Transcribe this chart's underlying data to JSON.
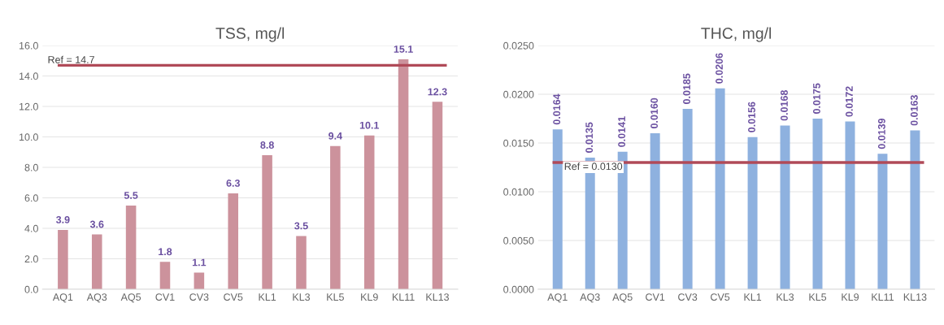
{
  "chart_data": [
    {
      "type": "bar",
      "title": "TSS, mg/l",
      "categories": [
        "AQ1",
        "AQ3",
        "AQ5",
        "CV1",
        "CV3",
        "CV5",
        "KL1",
        "KL3",
        "KL5",
        "KL9",
        "KL11",
        "KL13"
      ],
      "series": [
        {
          "color": "#cc929c",
          "values": [
            3.9,
            3.6,
            5.5,
            1.8,
            1.1,
            6.3,
            8.8,
            3.5,
            9.4,
            10.1,
            15.1,
            12.3
          ],
          "value_labels": [
            "3.9",
            "3.6",
            "5.5",
            "1.8",
            "1.1",
            "6.3",
            "8.8",
            "3.5",
            "9.4",
            "10.1",
            "15.1",
            "12.3"
          ]
        }
      ],
      "ylim": [
        0,
        16
      ],
      "yticks": [
        {
          "value": 0,
          "label": "0.0"
        },
        {
          "value": 2,
          "label": "2.0"
        },
        {
          "value": 4,
          "label": "4.0"
        },
        {
          "value": 6,
          "label": "6.0"
        },
        {
          "value": 8,
          "label": "8.0"
        },
        {
          "value": 10,
          "label": "10.0"
        },
        {
          "value": 12,
          "label": "12.0"
        },
        {
          "value": 14,
          "label": "14.0"
        },
        {
          "value": 16,
          "label": "16.0"
        }
      ],
      "ref_lines": [
        {
          "axis": "y",
          "value": 14.7,
          "label": "Ref = 14.7",
          "color": "#b04a58"
        }
      ],
      "grid": "y",
      "legend": false
    },
    {
      "type": "bar",
      "title": "THC, mg/l",
      "categories": [
        "AQ1",
        "AQ3",
        "AQ5",
        "CV1",
        "CV3",
        "CV5",
        "KL1",
        "KL3",
        "KL5",
        "KL9",
        "KL11",
        "KL13"
      ],
      "series": [
        {
          "color": "#8eb1df",
          "values": [
            0.0164,
            0.0135,
            0.0141,
            0.016,
            0.0185,
            0.0206,
            0.0156,
            0.0168,
            0.0175,
            0.0172,
            0.0139,
            0.0163
          ],
          "value_labels": [
            "0.0164",
            "0.0135",
            "0.0141",
            "0.0160",
            "0.0185",
            "0.0206",
            "0.0156",
            "0.0168",
            "0.0175",
            "0.0172",
            "0.0139",
            "0.0163"
          ]
        }
      ],
      "ylim": [
        0,
        0.025
      ],
      "yticks": [
        {
          "value": 0,
          "label": "0.0000"
        },
        {
          "value": 0.005,
          "label": "0.0050"
        },
        {
          "value": 0.01,
          "label": "0.0100"
        },
        {
          "value": 0.015,
          "label": "0.0150"
        },
        {
          "value": 0.02,
          "label": "0.0200"
        },
        {
          "value": 0.025,
          "label": "0.0250"
        }
      ],
      "ref_lines": [
        {
          "axis": "y",
          "value": 0.013,
          "label": "Ref = 0.0130",
          "color": "#b04a58"
        }
      ],
      "grid": "y",
      "legend": false
    }
  ]
}
